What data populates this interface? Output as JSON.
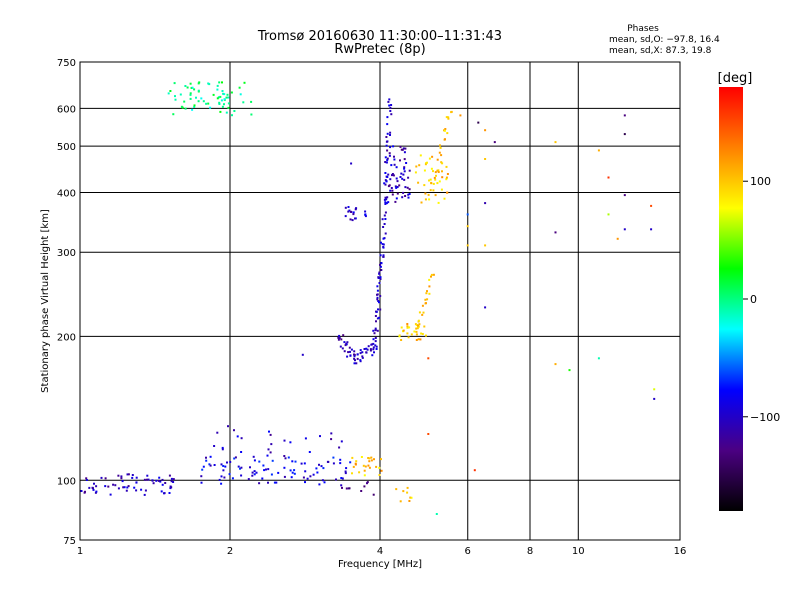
{
  "chart_data": {
    "type": "scatter",
    "title": "Tromsø 20160630 11:30:00–11:31:43",
    "subtitle": "RwPretec (8p)",
    "xlabel": "Frequency [MHz]",
    "ylabel": "Stationary phase Virtual Height [km]",
    "xscale": "log",
    "yscale": "log",
    "xlim": [
      1,
      16
    ],
    "ylim": [
      75,
      750
    ],
    "xticks": [
      1,
      2,
      4,
      6,
      8,
      10,
      16
    ],
    "xtick_labels": [
      "1",
      "2",
      "4",
      "6",
      "8",
      "10",
      "16"
    ],
    "yticks": [
      75,
      100,
      200,
      300,
      400,
      500,
      600,
      750
    ],
    "ytick_labels": [
      "75",
      "100",
      "200",
      "300",
      "400",
      "500",
      "600",
      "750"
    ],
    "grid": true,
    "stats": {
      "heading": "Phases",
      "line_o": "mean, sd,O: −97.8, 16.4",
      "line_x": "mean, sd,X:  87.3, 19.8"
    },
    "colorbar": {
      "label": "[deg]",
      "range": [
        -180,
        180
      ],
      "ticks": [
        100,
        0,
        -100
      ],
      "tick_labels": [
        "100",
        "0",
        "−100"
      ],
      "colors": [
        "#000000",
        "#4b0082",
        "#0000ff",
        "#00ffff",
        "#00ff00",
        "#ffff00",
        "#ff8000",
        "#ff0000"
      ]
    },
    "clusters": [
      {
        "f1": 1.0,
        "f2": 1.55,
        "h1": 93,
        "h2": 103,
        "phase": -105,
        "n": 70
      },
      {
        "f1": 1.75,
        "f2": 3.5,
        "h1": 98,
        "h2": 112,
        "phase": -90,
        "n": 90
      },
      {
        "f1": 1.8,
        "f2": 3.6,
        "h1": 112,
        "h2": 130,
        "phase": -100,
        "n": 25
      },
      {
        "f1": 3.3,
        "f2": 3.9,
        "h1": 92,
        "h2": 100,
        "phase": -125,
        "n": 10
      },
      {
        "f1": 3.5,
        "f2": 4.05,
        "h1": 102,
        "h2": 112,
        "phase": 100,
        "n": 25
      },
      {
        "f1": 4.3,
        "f2": 4.8,
        "h1": 90,
        "h2": 98,
        "phase": 95,
        "n": 8
      },
      {
        "f1": 1.5,
        "f2": 2.3,
        "h1": 580,
        "h2": 680,
        "phase": 0,
        "n": 70
      },
      {
        "f1": 3.4,
        "f2": 3.75,
        "h1": 350,
        "h2": 375,
        "phase": -100,
        "n": 20
      },
      {
        "f1": 4.35,
        "f2": 5.0,
        "h1": 195,
        "h2": 215,
        "phase": 100,
        "n": 25
      },
      {
        "f1": 4.7,
        "f2": 5.5,
        "h1": 380,
        "h2": 480,
        "phase": 100,
        "n": 40
      },
      {
        "f1": 4.1,
        "f2": 4.6,
        "h1": 380,
        "h2": 500,
        "phase": -105,
        "n": 60
      }
    ],
    "traces": [
      {
        "f1": 3.3,
        "f2": 3.55,
        "h1": 200,
        "h2": 180,
        "phase": -110,
        "n": 25
      },
      {
        "f1": 3.55,
        "f2": 3.9,
        "h1": 180,
        "h2": 190,
        "phase": -100,
        "n": 30
      },
      {
        "f1": 3.9,
        "f2": 4.05,
        "h1": 190,
        "h2": 300,
        "phase": -100,
        "n": 45
      },
      {
        "f1": 4.05,
        "f2": 4.2,
        "h1": 300,
        "h2": 620,
        "phase": -100,
        "n": 50
      },
      {
        "f1": 4.7,
        "f2": 5.1,
        "h1": 200,
        "h2": 270,
        "phase": 100,
        "n": 25
      },
      {
        "f1": 5.1,
        "f2": 5.55,
        "h1": 400,
        "h2": 600,
        "phase": 100,
        "n": 25
      }
    ],
    "points": [
      {
        "x": 2.8,
        "y": 183,
        "phase": -100
      },
      {
        "x": 3.5,
        "y": 460,
        "phase": -100
      },
      {
        "x": 5.0,
        "y": 180,
        "phase": 150
      },
      {
        "x": 5.0,
        "y": 125,
        "phase": 150
      },
      {
        "x": 5.2,
        "y": 85,
        "phase": -10
      },
      {
        "x": 5.8,
        "y": 580,
        "phase": 120
      },
      {
        "x": 6.0,
        "y": 360,
        "phase": -60
      },
      {
        "x": 6.0,
        "y": 340,
        "phase": 100
      },
      {
        "x": 6.0,
        "y": 310,
        "phase": 100
      },
      {
        "x": 6.2,
        "y": 105,
        "phase": 160
      },
      {
        "x": 6.3,
        "y": 560,
        "phase": -150
      },
      {
        "x": 6.5,
        "y": 540,
        "phase": 120
      },
      {
        "x": 6.5,
        "y": 380,
        "phase": -110
      },
      {
        "x": 6.5,
        "y": 470,
        "phase": 100
      },
      {
        "x": 6.5,
        "y": 310,
        "phase": 100
      },
      {
        "x": 6.5,
        "y": 230,
        "phase": -100
      },
      {
        "x": 6.8,
        "y": 510,
        "phase": -130
      },
      {
        "x": 9.0,
        "y": 510,
        "phase": 100
      },
      {
        "x": 9.0,
        "y": 330,
        "phase": -130
      },
      {
        "x": 9.0,
        "y": 175,
        "phase": 110
      },
      {
        "x": 9.6,
        "y": 170,
        "phase": 30
      },
      {
        "x": 11.0,
        "y": 490,
        "phase": 110
      },
      {
        "x": 11.0,
        "y": 180,
        "phase": -10
      },
      {
        "x": 11.5,
        "y": 430,
        "phase": 160
      },
      {
        "x": 11.5,
        "y": 360,
        "phase": 60
      },
      {
        "x": 12.0,
        "y": 320,
        "phase": 120
      },
      {
        "x": 12.4,
        "y": 580,
        "phase": -130
      },
      {
        "x": 12.4,
        "y": 530,
        "phase": -150
      },
      {
        "x": 12.4,
        "y": 395,
        "phase": -130
      },
      {
        "x": 12.4,
        "y": 335,
        "phase": -100
      },
      {
        "x": 14.0,
        "y": 375,
        "phase": 150
      },
      {
        "x": 14.0,
        "y": 335,
        "phase": -100
      },
      {
        "x": 14.2,
        "y": 155,
        "phase": 70
      },
      {
        "x": 14.2,
        "y": 148,
        "phase": -100
      }
    ]
  }
}
